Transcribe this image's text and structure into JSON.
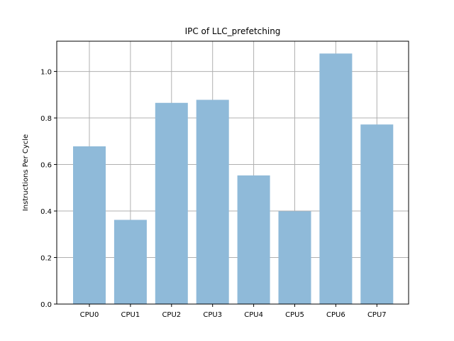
{
  "chart_data": {
    "type": "bar",
    "title": "IPC of LLC_prefetching",
    "xlabel": "",
    "ylabel": "Instructions Per Cycle",
    "categories": [
      "CPU0",
      "CPU1",
      "CPU2",
      "CPU3",
      "CPU4",
      "CPU5",
      "CPU6",
      "CPU7"
    ],
    "values": [
      0.678,
      0.362,
      0.865,
      0.878,
      0.553,
      0.399,
      1.077,
      0.772
    ],
    "ylim": [
      0,
      1.13
    ],
    "yticks": [
      0.0,
      0.2,
      0.4,
      0.6,
      0.8,
      1.0
    ],
    "ytick_labels": [
      "0.0",
      "0.2",
      "0.4",
      "0.6",
      "0.8",
      "1.0"
    ],
    "grid": true,
    "bar_color": "#8fbad9",
    "grid_color": "#b0b0b0"
  }
}
